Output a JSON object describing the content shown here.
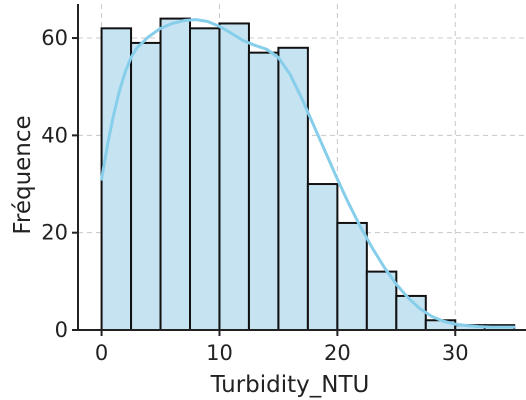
{
  "chart_data": {
    "type": "bar",
    "title": "",
    "xlabel": "Turbidity_NTU",
    "ylabel": "Fréquence",
    "xlim": [
      -2,
      36
    ],
    "ylim": [
      0,
      67
    ],
    "x_ticks": [
      0,
      10,
      20,
      30
    ],
    "y_ticks": [
      0,
      20,
      40,
      60
    ],
    "grid": true,
    "bin_edges": [
      0,
      2.5,
      5,
      7.5,
      10,
      12.5,
      15,
      17.5,
      20,
      22.5,
      25,
      27.5,
      30,
      32.5,
      35
    ],
    "counts": [
      62,
      59,
      64,
      62,
      63,
      57,
      58,
      30,
      22,
      12,
      7,
      2,
      1,
      1
    ],
    "kde": {
      "x": [
        0,
        0.5,
        1,
        1.5,
        2,
        2.5,
        3,
        4,
        5,
        6,
        7,
        8,
        9,
        10,
        11,
        12,
        13,
        14,
        15,
        16,
        17,
        18,
        19,
        20,
        21,
        22,
        23,
        24,
        25,
        26,
        27,
        28,
        29,
        30,
        31,
        32,
        33,
        34,
        35
      ],
      "y": [
        31,
        38,
        44,
        49,
        53,
        56,
        58,
        60.3,
        62,
        63,
        63.6,
        63.8,
        63.4,
        62.4,
        61,
        59.5,
        58.5,
        57.7,
        56,
        52.5,
        47.5,
        42,
        36.5,
        31,
        25.8,
        21,
        16.7,
        12.8,
        9.4,
        6.6,
        4.4,
        2.8,
        1.8,
        1.2,
        0.9,
        0.7,
        0.6,
        0.6,
        0.6
      ]
    },
    "colors": {
      "bar_fill": "#c6e3f1",
      "bar_edge": "#111111",
      "kde_line": "#87ceeb"
    }
  }
}
